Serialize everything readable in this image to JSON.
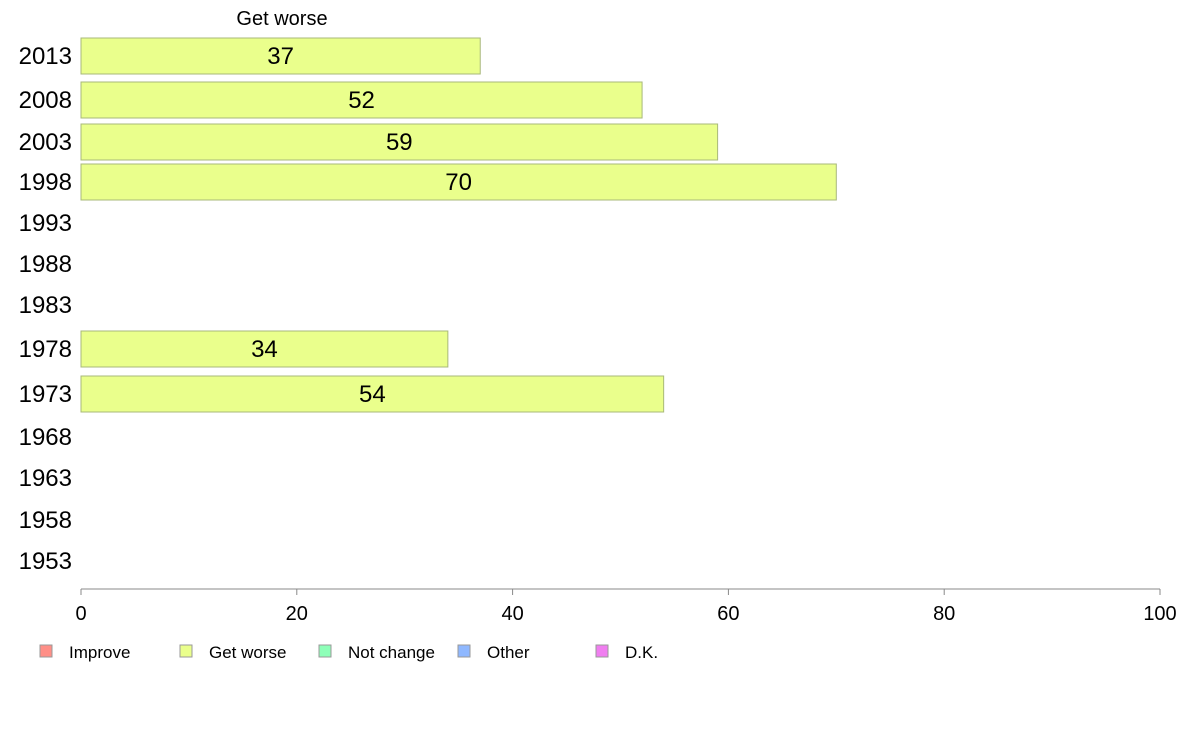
{
  "chart_data": {
    "type": "bar",
    "orientation": "horizontal",
    "title": "Get worse",
    "categories": [
      "2013",
      "2008",
      "2003",
      "1998",
      "1993",
      "1988",
      "1983",
      "1978",
      "1973",
      "1968",
      "1963",
      "1958",
      "1953"
    ],
    "series": [
      {
        "name": "Get worse",
        "color": "#eaff8c",
        "values": [
          37,
          52,
          59,
          70,
          null,
          null,
          null,
          34,
          54,
          null,
          null,
          null,
          null
        ]
      }
    ],
    "xlim": [
      0,
      100
    ],
    "xticks": [
      0,
      20,
      40,
      60,
      80,
      100
    ],
    "grid": false,
    "legend": {
      "placement": "bottom",
      "items": [
        {
          "label": "Improve",
          "color": "#ff8f87"
        },
        {
          "label": "Get worse",
          "color": "#eaff8c"
        },
        {
          "label": "Not change",
          "color": "#8effb8"
        },
        {
          "label": "Other",
          "color": "#8fb8ff"
        },
        {
          "label": "D.K.",
          "color": "#f07ef0"
        }
      ]
    }
  }
}
